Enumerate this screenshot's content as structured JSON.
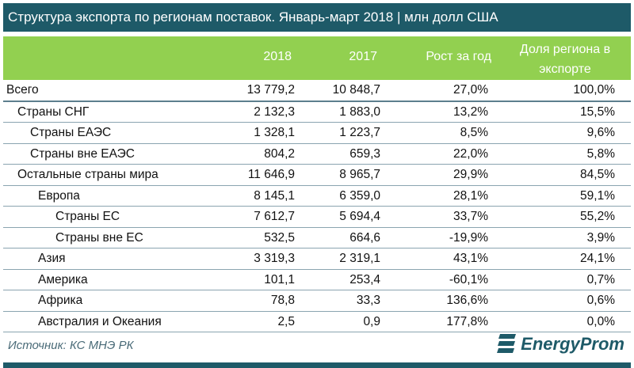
{
  "title": "Структура экспорта по регионам поставок. Январь-март 2018 | млн долл США",
  "chart_data": {
    "type": "table",
    "columns": [
      "2018",
      "2017",
      "Рост за год",
      "Доля региона в экспорте"
    ],
    "rows": [
      {
        "label": "Всего",
        "level": 0,
        "values": [
          "13 779,2",
          "10 848,7",
          "27,0%",
          "100,0%"
        ]
      },
      {
        "label": "Страны СНГ",
        "level": 1,
        "values": [
          "2 132,3",
          "1 883,0",
          "13,2%",
          "15,5%"
        ]
      },
      {
        "label": "Страны ЕАЭС",
        "level": 2,
        "values": [
          "1 328,1",
          "1 223,7",
          "8,5%",
          "9,6%"
        ]
      },
      {
        "label": "Страны вне ЕАЭС",
        "level": 2,
        "values": [
          "804,2",
          "659,3",
          "22,0%",
          "5,8%"
        ]
      },
      {
        "label": "Остальные страны мира",
        "level": 1,
        "values": [
          "11 646,9",
          "8 965,7",
          "29,9%",
          "84,5%"
        ]
      },
      {
        "label": "Европа",
        "level": 3,
        "values": [
          "8 145,1",
          "6 359,0",
          "28,1%",
          "59,1%"
        ]
      },
      {
        "label": "Страны ЕС",
        "level": 4,
        "values": [
          "7 612,7",
          "5 694,4",
          "33,7%",
          "55,2%"
        ]
      },
      {
        "label": "Страны вне ЕС",
        "level": 4,
        "values": [
          "532,5",
          "664,6",
          "-19,9%",
          "3,9%"
        ]
      },
      {
        "label": "Азия",
        "level": 3,
        "values": [
          "3 319,3",
          "2 319,1",
          "43,1%",
          "24,1%"
        ]
      },
      {
        "label": "Америка",
        "level": 3,
        "values": [
          "101,1",
          "253,4",
          "-60,1%",
          "0,7%"
        ]
      },
      {
        "label": "Африка",
        "level": 3,
        "values": [
          "78,8",
          "33,3",
          "136,6%",
          "0,6%"
        ]
      },
      {
        "label": "Австралия и Океания",
        "level": 3,
        "values": [
          "2,5",
          "0,9",
          "177,8%",
          "0,0%"
        ]
      }
    ]
  },
  "source": "Источник: КС МНЭ РК",
  "logo": "EnergyProm",
  "colors": {
    "title_bg": "#1e5a68",
    "header_bg": "#92d050"
  }
}
